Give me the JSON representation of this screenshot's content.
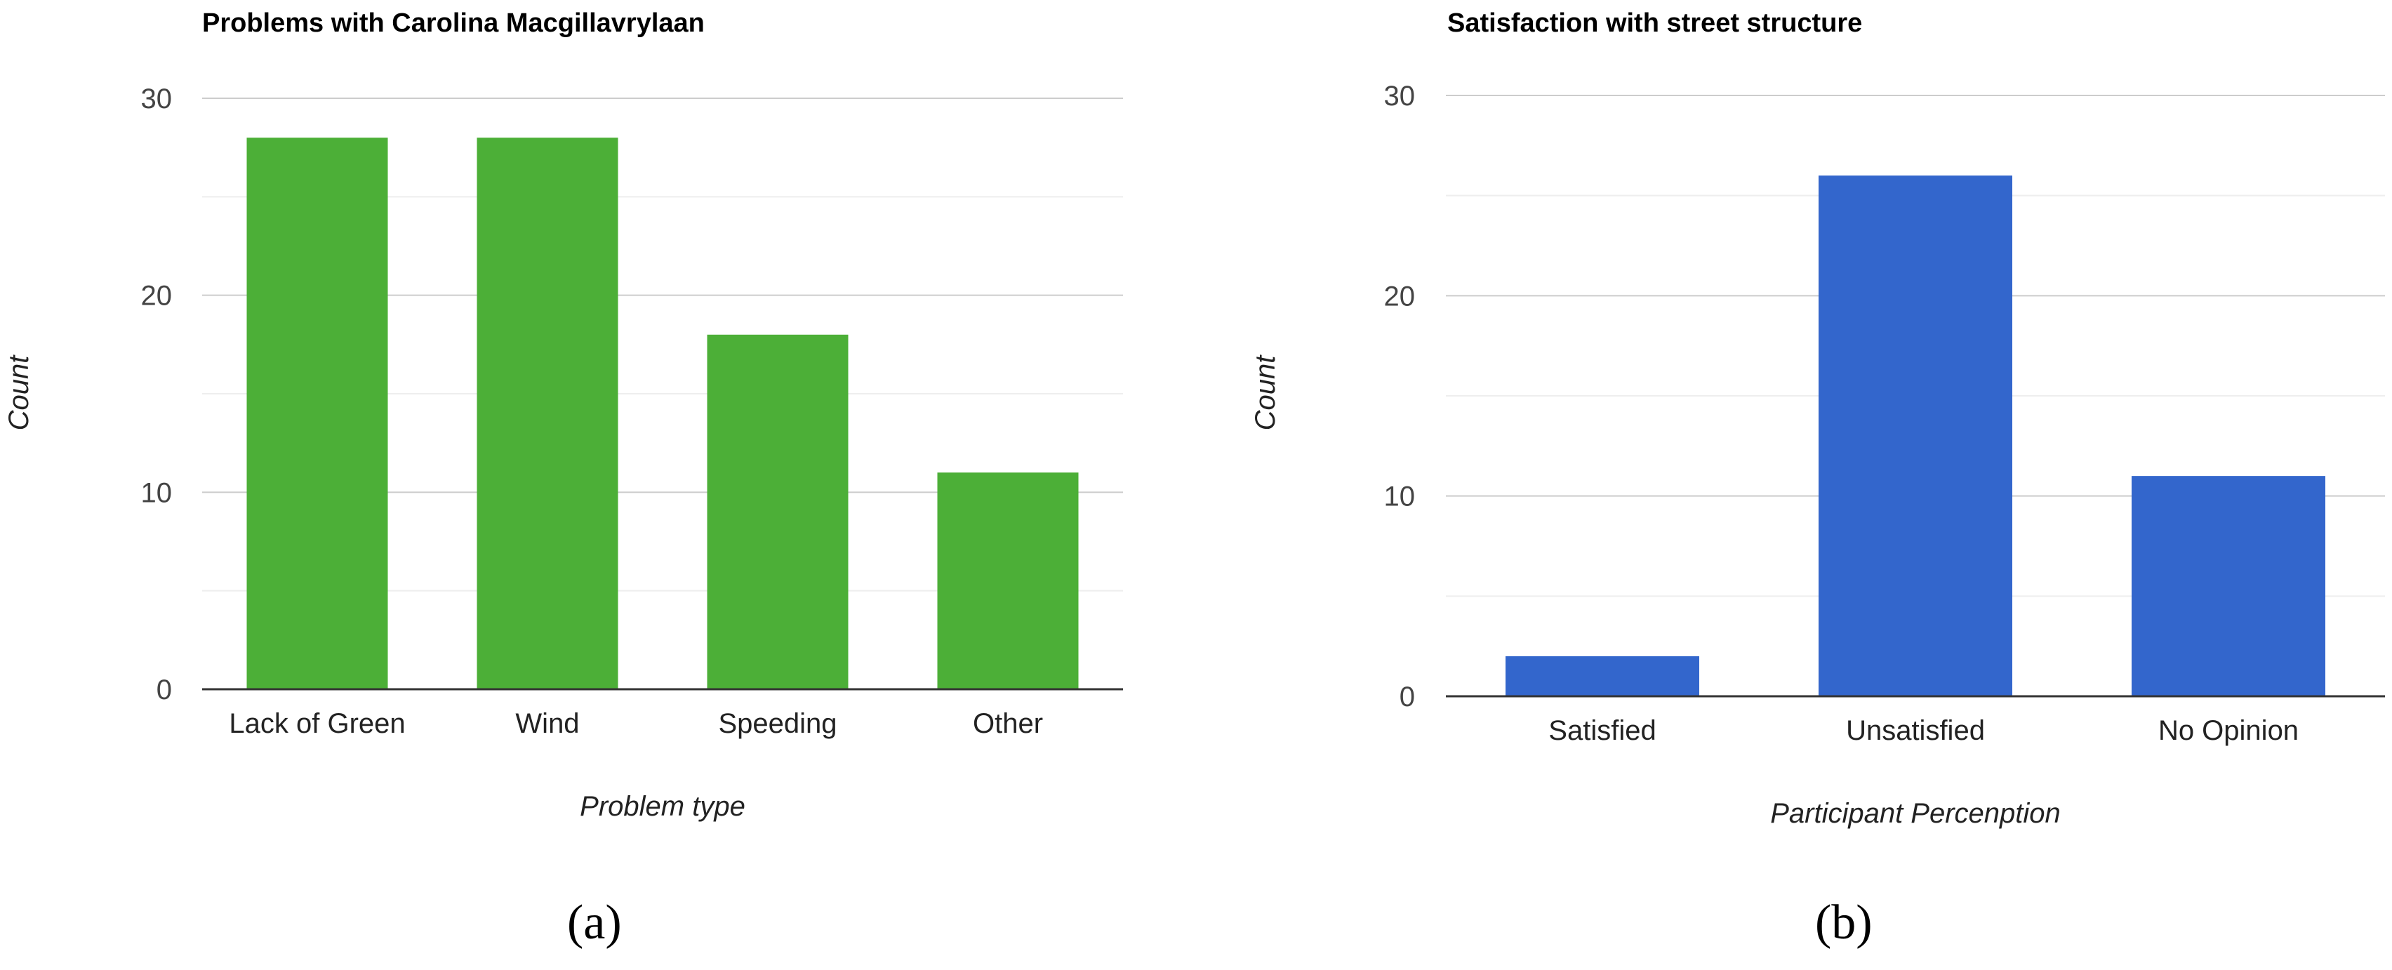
{
  "chart_data": [
    {
      "id": "a",
      "type": "bar",
      "title": "Problems with Carolina Macgillavrylaan",
      "xlabel": "Problem type",
      "ylabel": "Count",
      "categories": [
        "Lack of Green",
        "Wind",
        "Speeding",
        "Other"
      ],
      "values": [
        28,
        28,
        18,
        11
      ],
      "ylim": [
        0,
        30
      ],
      "yticks": [
        0,
        10,
        20,
        30
      ],
      "minor_grid": [
        5,
        15,
        25
      ],
      "grid": true,
      "color": "#4caf37",
      "caption": "(a)"
    },
    {
      "id": "b",
      "type": "bar",
      "title": "Satisfaction with street structure",
      "xlabel": "Participant Percenption",
      "ylabel": "Count",
      "categories": [
        "Satisfied",
        "Unsatisfied",
        "No Opinion"
      ],
      "values": [
        2,
        26,
        11
      ],
      "ylim": [
        0,
        30
      ],
      "yticks": [
        0,
        10,
        20,
        30
      ],
      "minor_grid": [
        5,
        15,
        25
      ],
      "grid": true,
      "color": "#3366cc",
      "caption": "(b)"
    }
  ]
}
